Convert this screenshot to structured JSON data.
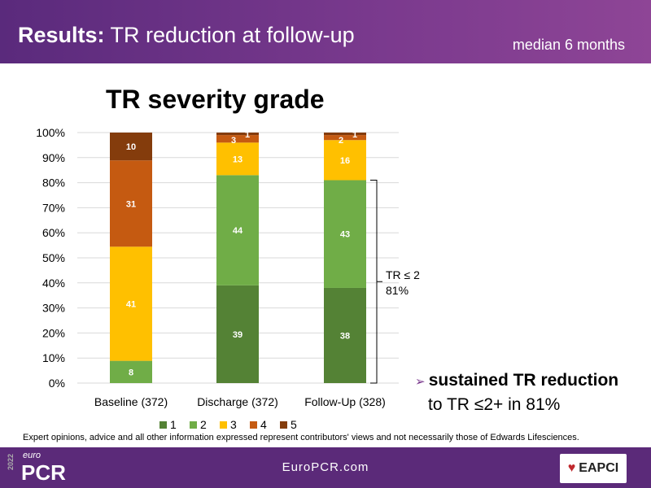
{
  "header": {
    "title_bold": "Results:",
    "title_rest": " TR reduction at follow-up",
    "subtitle": "median 6 months"
  },
  "chart_data": {
    "type": "bar",
    "stacked": true,
    "title": "TR severity grade",
    "categories": [
      "Baseline (372)",
      "Discharge (372)",
      "Follow-Up (328)"
    ],
    "series": [
      {
        "name": "1",
        "color": "#548235",
        "values": [
          null,
          39,
          38
        ]
      },
      {
        "name": "2",
        "color": "#70ad47",
        "values": [
          8,
          44,
          43
        ]
      },
      {
        "name": "3",
        "color": "#ffc000",
        "values": [
          41,
          13,
          16
        ]
      },
      {
        "name": "4",
        "color": "#c55a11",
        "values": [
          31,
          3,
          2
        ]
      },
      {
        "name": "5",
        "color": "#843c0c",
        "values": [
          10,
          1,
          1
        ]
      }
    ],
    "yticks": [
      "0%",
      "10%",
      "20%",
      "30%",
      "40%",
      "50%",
      "60%",
      "70%",
      "80%",
      "90%",
      "100%"
    ],
    "ylim": [
      0,
      100
    ],
    "grid": true,
    "legend": "bottom",
    "annotation": {
      "line1": "TR ≤ 2",
      "line2": "81%"
    }
  },
  "bullet": {
    "bold": "sustained TR reduction",
    "rest": "to TR ≤2+ in 81%"
  },
  "disclaimer": "Expert opinions, advice and all other information expressed represent contributors' views and not necessarily those of Edwards Lifesciences.",
  "footer": {
    "url": "EuroPCR.com",
    "logo_year": "2022",
    "logo_small": "euro",
    "logo_big": "PCR",
    "partner": "EAPCI"
  }
}
